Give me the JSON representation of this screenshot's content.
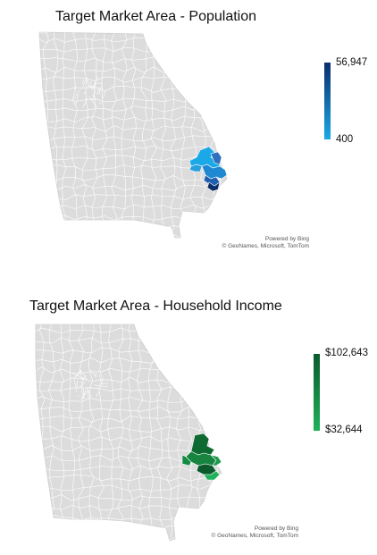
{
  "maps": [
    {
      "title": "Target Market Area - Population",
      "metric": "Population",
      "legend": {
        "max_label": "56,947",
        "min_label": "400",
        "max_value": 56947,
        "min_value": 400,
        "color_high": "#0b2e6b",
        "color_low": "#1aa9e6"
      },
      "attribution": {
        "line1": "Powered by Bing",
        "line2": "© GeoNames, Microsoft, TomTom"
      },
      "base_color": "#dcdcdc",
      "border_color": "#ffffff"
    },
    {
      "title": "Target Market Area - Household Income",
      "metric": "Household Income",
      "legend": {
        "max_label": "$102,643",
        "min_label": "$32,644",
        "max_value": 102643,
        "min_value": 32644,
        "color_high": "#0b5a2c",
        "color_low": "#1fb25a"
      },
      "attribution": {
        "line1": "Powered by Bing",
        "line2": "© GeoNames, Microsoft, TomTom"
      },
      "base_color": "#dcdcdc",
      "border_color": "#ffffff"
    }
  ]
}
